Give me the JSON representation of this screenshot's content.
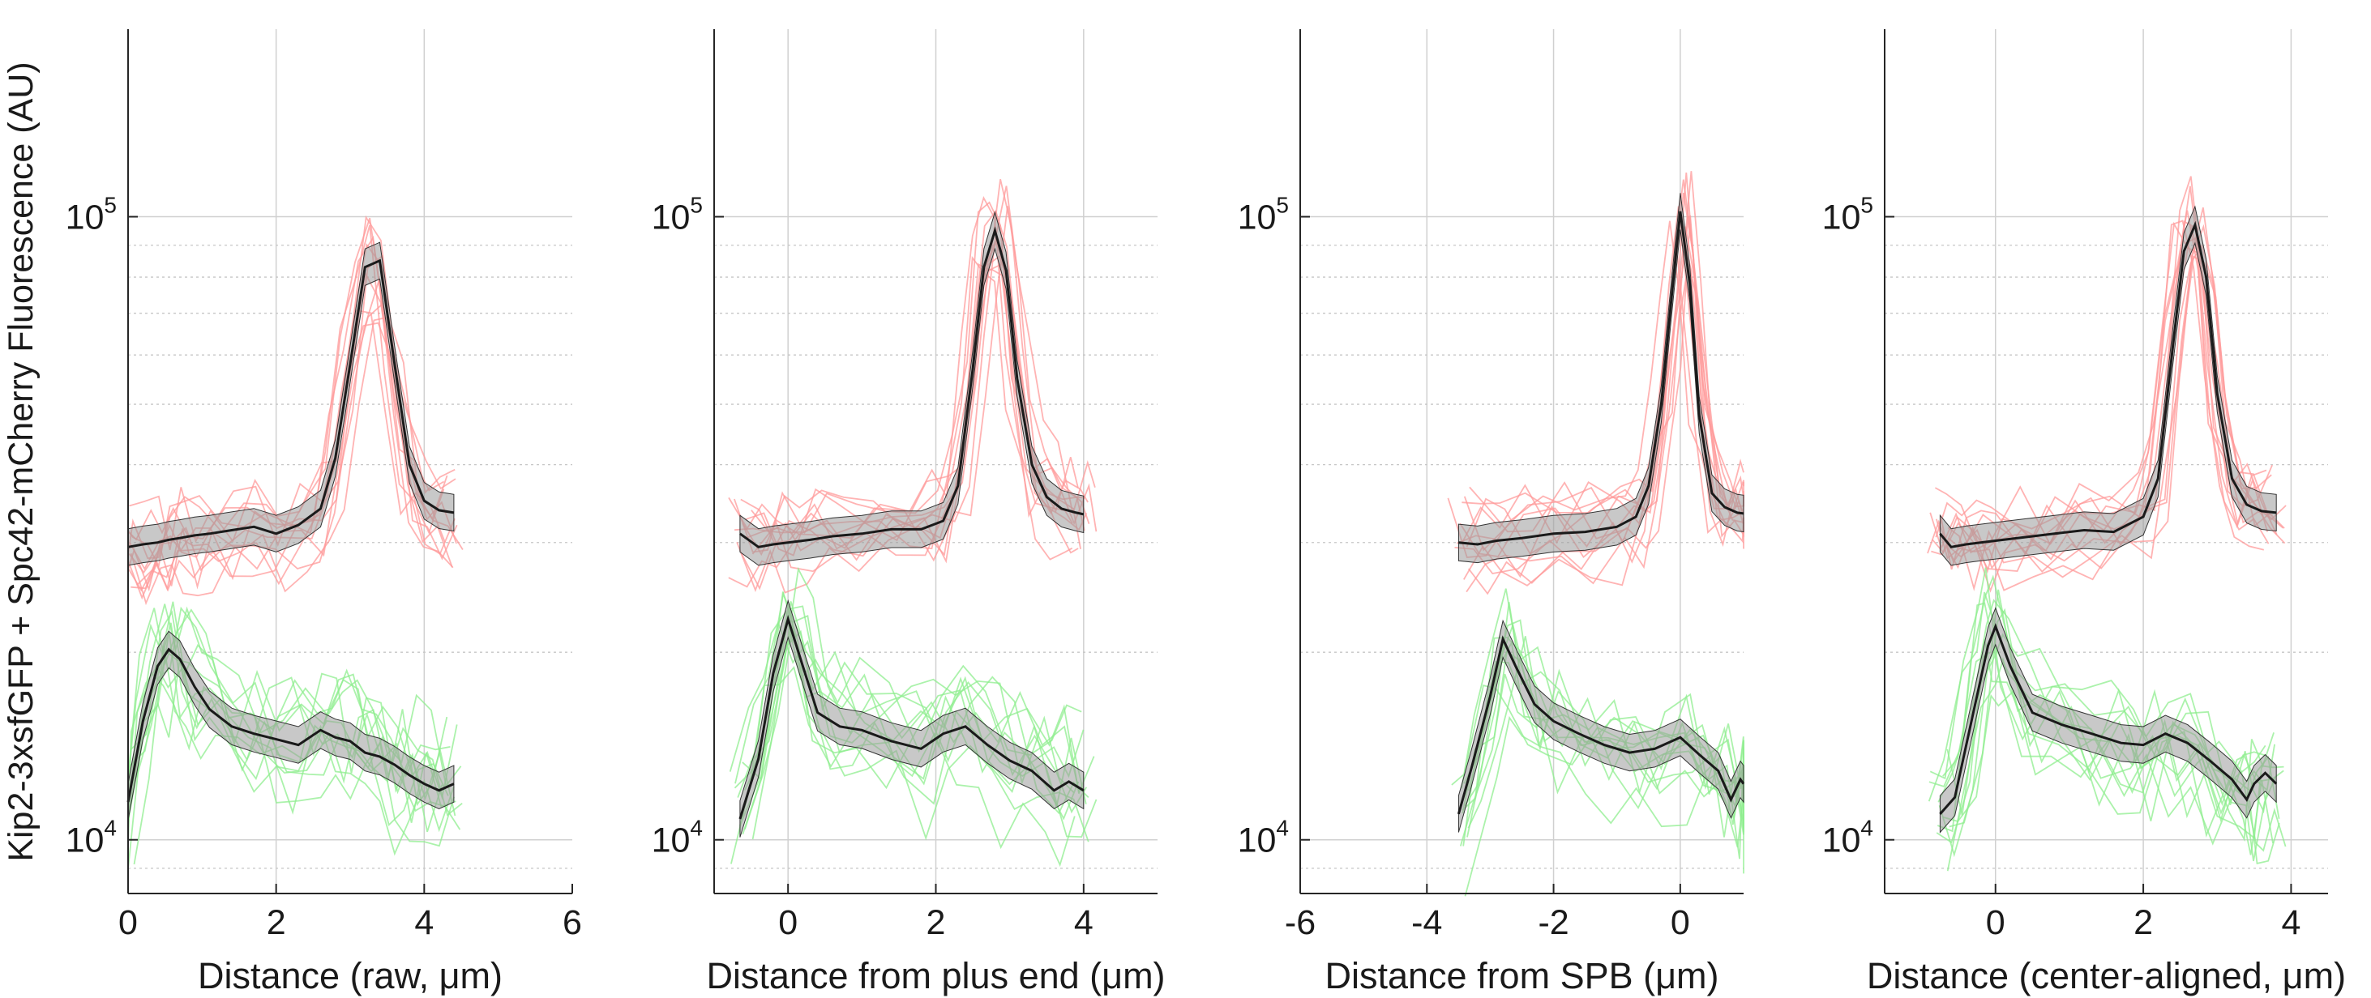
{
  "figure": {
    "ylabel": "Kip2-3xsfGFP + Spc42-mCherry Fluorescence (AU)"
  },
  "chart_data": [
    {
      "type": "line",
      "xlabel": "Distance (raw, μm)",
      "x_ticks": [
        "0",
        "2",
        "4",
        "6"
      ],
      "y_ticks": [
        "10⁴",
        "10⁵"
      ],
      "xlim": [
        0,
        6
      ],
      "ylim": [
        8200,
        200000
      ],
      "yscale": "log",
      "grid": true,
      "series": [
        {
          "color": "#1a1a1a",
          "x": [
            0,
            0.2,
            0.4,
            0.55,
            0.7,
            0.9,
            1.1,
            1.4,
            1.7,
            2.0,
            2.3,
            2.6,
            2.8,
            3.0,
            3.2,
            3.4,
            3.6,
            3.8,
            4.0,
            4.2,
            4.4
          ],
          "y": [
            29500,
            29800,
            30000,
            30300,
            30500,
            30800,
            31000,
            31400,
            31800,
            31000,
            32000,
            34000,
            41000,
            58000,
            83000,
            85000,
            58000,
            40000,
            35000,
            33800,
            33500
          ]
        },
        {
          "color": "#1a1a1a",
          "x": [
            0,
            0.2,
            0.4,
            0.55,
            0.7,
            0.9,
            1.1,
            1.4,
            1.7,
            2.0,
            2.3,
            2.6,
            2.8,
            3.0,
            3.2,
            3.4,
            3.6,
            3.8,
            4.0,
            4.2,
            4.4
          ],
          "y": [
            11500,
            15500,
            19000,
            20200,
            19500,
            17600,
            16200,
            15200,
            14800,
            14500,
            14200,
            15000,
            14600,
            14400,
            13800,
            13600,
            13200,
            12700,
            12300,
            12000,
            12300
          ]
        }
      ]
    },
    {
      "type": "line",
      "xlabel": "Distance from plus end (μm)",
      "x_ticks": [
        "0",
        "2",
        "4"
      ],
      "y_ticks": [
        "10⁴",
        "10⁵"
      ],
      "xlim": [
        -1,
        5
      ],
      "ylim": [
        8200,
        200000
      ],
      "yscale": "log",
      "grid": true,
      "series": [
        {
          "color": "#1a1a1a",
          "x": [
            -0.65,
            -0.4,
            -0.2,
            0,
            0.3,
            0.6,
            1.0,
            1.4,
            1.8,
            2.1,
            2.3,
            2.5,
            2.65,
            2.8,
            2.95,
            3.1,
            3.3,
            3.5,
            3.7,
            3.9,
            4.0
          ],
          "y": [
            31000,
            29500,
            29800,
            30000,
            30300,
            30700,
            31000,
            31500,
            31500,
            32500,
            37000,
            57000,
            83000,
            95000,
            82000,
            55000,
            40000,
            35500,
            34000,
            33500,
            33300
          ]
        },
        {
          "color": "#1a1a1a",
          "x": [
            -0.65,
            -0.4,
            -0.2,
            0,
            0.2,
            0.4,
            0.7,
            1.0,
            1.4,
            1.8,
            2.1,
            2.4,
            2.7,
            3.0,
            3.3,
            3.6,
            3.8,
            4.0
          ],
          "y": [
            10800,
            13500,
            18500,
            22600,
            19000,
            16000,
            15200,
            15000,
            14400,
            14000,
            14800,
            15200,
            14200,
            13400,
            12900,
            12000,
            12400,
            12000
          ]
        }
      ]
    },
    {
      "type": "line",
      "xlabel": "Distance from SPB (μm)",
      "x_ticks": [
        "-6",
        "-4",
        "-2",
        "0"
      ],
      "y_ticks": [
        "10⁴",
        "10⁵"
      ],
      "xlim": [
        -6,
        1
      ],
      "ylim": [
        8200,
        200000
      ],
      "yscale": "log",
      "grid": true,
      "series": [
        {
          "color": "#1a1a1a",
          "x": [
            -3.5,
            -3.2,
            -2.9,
            -2.5,
            -2.0,
            -1.5,
            -1.0,
            -0.7,
            -0.5,
            -0.3,
            -0.15,
            0,
            0.15,
            0.3,
            0.5,
            0.7,
            0.9,
            1.0
          ],
          "y": [
            30000,
            29800,
            30200,
            30500,
            31000,
            31200,
            31800,
            33000,
            37000,
            50000,
            72000,
            102000,
            78000,
            48000,
            36000,
            34200,
            33500,
            33400
          ]
        },
        {
          "color": "#1a1a1a",
          "x": [
            -3.5,
            -3.3,
            -3.0,
            -2.8,
            -2.6,
            -2.3,
            -2.0,
            -1.6,
            -1.2,
            -0.8,
            -0.4,
            0,
            0.3,
            0.6,
            0.8,
            0.95,
            1.0
          ],
          "y": [
            11000,
            13000,
            17000,
            21000,
            19000,
            16500,
            15500,
            14800,
            14200,
            13800,
            14000,
            14600,
            13700,
            12900,
            11600,
            12500,
            12300
          ]
        }
      ]
    },
    {
      "type": "line",
      "xlabel": "Distance (center-aligned, μm)",
      "x_ticks": [
        "0",
        "2",
        "4"
      ],
      "y_ticks": [
        "10⁴",
        "10⁵"
      ],
      "xlim": [
        -1.5,
        4.5
      ],
      "ylim": [
        8200,
        200000
      ],
      "yscale": "log",
      "grid": true,
      "series": [
        {
          "color": "#1a1a1a",
          "x": [
            -0.75,
            -0.6,
            -0.4,
            -0.2,
            0,
            0.4,
            0.8,
            1.2,
            1.6,
            2.0,
            2.2,
            2.4,
            2.55,
            2.7,
            2.85,
            3.0,
            3.2,
            3.4,
            3.6,
            3.8
          ],
          "y": [
            31000,
            29500,
            29800,
            30000,
            30200,
            30600,
            31000,
            31400,
            31200,
            33000,
            38000,
            62000,
            88000,
            97000,
            80000,
            52000,
            38000,
            34500,
            33700,
            33500
          ]
        },
        {
          "color": "#1a1a1a",
          "x": [
            -0.75,
            -0.55,
            -0.3,
            -0.1,
            0,
            0.2,
            0.5,
            0.9,
            1.3,
            1.7,
            2.0,
            2.3,
            2.6,
            2.9,
            3.2,
            3.4,
            3.5,
            3.65,
            3.8
          ],
          "y": [
            11000,
            11700,
            16000,
            20500,
            22000,
            19000,
            16000,
            15300,
            14800,
            14300,
            14200,
            14800,
            14300,
            13400,
            12500,
            11600,
            12300,
            12800,
            12300
          ]
        }
      ]
    }
  ],
  "colors": {
    "kip2_traces": "#ff9a9a",
    "spc42_traces": "#8fee8f",
    "mean_line": "#1a1a1a",
    "ci_band": "#9a9a9a"
  }
}
